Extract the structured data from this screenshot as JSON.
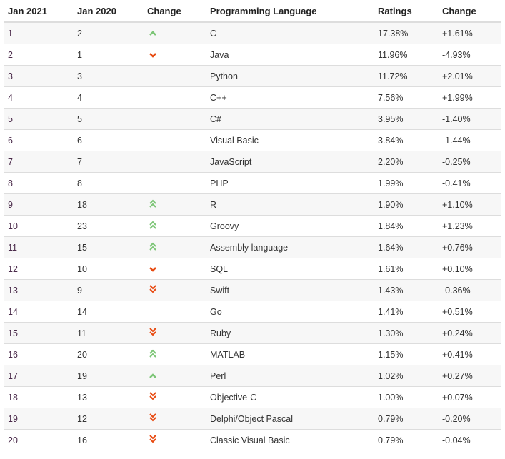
{
  "headers": [
    "Jan 2021",
    "Jan 2020",
    "Change",
    "Programming Language",
    "Ratings",
    "Change"
  ],
  "colors": {
    "up": "#7cc576",
    "down": "#e8490f"
  },
  "rows": [
    {
      "rank": "1",
      "prev": "2",
      "trend": "up",
      "lang": "C",
      "rating": "17.38%",
      "change": "+1.61%"
    },
    {
      "rank": "2",
      "prev": "1",
      "trend": "down",
      "lang": "Java",
      "rating": "11.96%",
      "change": "-4.93%"
    },
    {
      "rank": "3",
      "prev": "3",
      "trend": "",
      "lang": "Python",
      "rating": "11.72%",
      "change": "+2.01%"
    },
    {
      "rank": "4",
      "prev": "4",
      "trend": "",
      "lang": "C++",
      "rating": "7.56%",
      "change": "+1.99%"
    },
    {
      "rank": "5",
      "prev": "5",
      "trend": "",
      "lang": "C#",
      "rating": "3.95%",
      "change": "-1.40%"
    },
    {
      "rank": "6",
      "prev": "6",
      "trend": "",
      "lang": "Visual Basic",
      "rating": "3.84%",
      "change": "-1.44%"
    },
    {
      "rank": "7",
      "prev": "7",
      "trend": "",
      "lang": "JavaScript",
      "rating": "2.20%",
      "change": "-0.25%"
    },
    {
      "rank": "8",
      "prev": "8",
      "trend": "",
      "lang": "PHP",
      "rating": "1.99%",
      "change": "-0.41%"
    },
    {
      "rank": "9",
      "prev": "18",
      "trend": "up2",
      "lang": "R",
      "rating": "1.90%",
      "change": "+1.10%"
    },
    {
      "rank": "10",
      "prev": "23",
      "trend": "up2",
      "lang": "Groovy",
      "rating": "1.84%",
      "change": "+1.23%"
    },
    {
      "rank": "11",
      "prev": "15",
      "trend": "up2",
      "lang": "Assembly language",
      "rating": "1.64%",
      "change": "+0.76%"
    },
    {
      "rank": "12",
      "prev": "10",
      "trend": "down",
      "lang": "SQL",
      "rating": "1.61%",
      "change": "+0.10%"
    },
    {
      "rank": "13",
      "prev": "9",
      "trend": "down2",
      "lang": "Swift",
      "rating": "1.43%",
      "change": "-0.36%"
    },
    {
      "rank": "14",
      "prev": "14",
      "trend": "",
      "lang": "Go",
      "rating": "1.41%",
      "change": "+0.51%"
    },
    {
      "rank": "15",
      "prev": "11",
      "trend": "down2",
      "lang": "Ruby",
      "rating": "1.30%",
      "change": "+0.24%"
    },
    {
      "rank": "16",
      "prev": "20",
      "trend": "up2",
      "lang": "MATLAB",
      "rating": "1.15%",
      "change": "+0.41%"
    },
    {
      "rank": "17",
      "prev": "19",
      "trend": "up",
      "lang": "Perl",
      "rating": "1.02%",
      "change": "+0.27%"
    },
    {
      "rank": "18",
      "prev": "13",
      "trend": "down2",
      "lang": "Objective-C",
      "rating": "1.00%",
      "change": "+0.07%"
    },
    {
      "rank": "19",
      "prev": "12",
      "trend": "down2",
      "lang": "Delphi/Object Pascal",
      "rating": "0.79%",
      "change": "-0.20%"
    },
    {
      "rank": "20",
      "prev": "16",
      "trend": "down2",
      "lang": "Classic Visual Basic",
      "rating": "0.79%",
      "change": "-0.04%"
    }
  ]
}
